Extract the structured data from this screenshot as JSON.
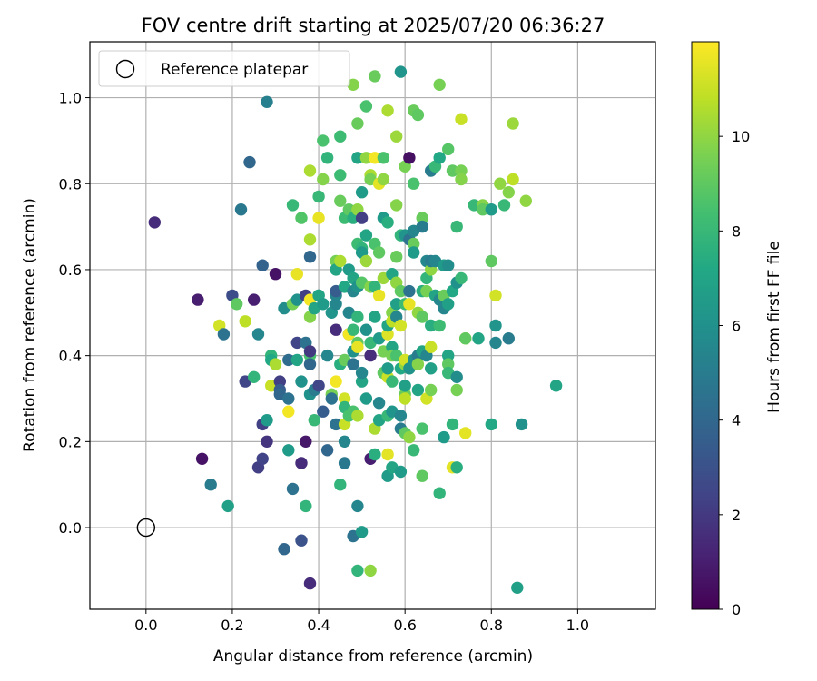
{
  "chart_data": {
    "type": "scatter",
    "title": "FOV centre drift starting at 2025/07/20 06:36:27",
    "xlabel": "Angular distance from reference (arcmin)",
    "ylabel": "Rotation from reference (arcmin)",
    "xlim": [
      -0.13,
      1.18
    ],
    "ylim": [
      -0.19,
      1.13
    ],
    "xticks": [
      0.0,
      0.2,
      0.4,
      0.6,
      0.8,
      1.0
    ],
    "xtick_labels": [
      "0.0",
      "0.2",
      "0.4",
      "0.6",
      "0.8",
      "1.0"
    ],
    "yticks": [
      0.0,
      0.2,
      0.4,
      0.6,
      0.8,
      1.0
    ],
    "ytick_labels": [
      "0.0",
      "0.2",
      "0.4",
      "0.6",
      "0.8",
      "1.0"
    ],
    "grid": true,
    "legend": {
      "placement": "upper-left",
      "entries": [
        "Reference platepar"
      ]
    },
    "reference_point": {
      "x": 0.0,
      "y": 0.0,
      "label": "Reference platepar"
    },
    "colorbar": {
      "label": "Hours from first FF file",
      "colormap": "viridis",
      "range": [
        0,
        12
      ],
      "ticks": [
        0,
        2,
        4,
        6,
        8,
        10
      ],
      "tick_labels": [
        "0",
        "2",
        "4",
        "6",
        "8",
        "10"
      ]
    },
    "points": [
      [
        0.02,
        0.71,
        1.5
      ],
      [
        0.12,
        0.53,
        1.0
      ],
      [
        0.13,
        0.16,
        0.6
      ],
      [
        0.15,
        0.1,
        5.0
      ],
      [
        0.17,
        0.47,
        11.2
      ],
      [
        0.18,
        0.45,
        4.5
      ],
      [
        0.19,
        0.05,
        6.8
      ],
      [
        0.2,
        0.54,
        2.8
      ],
      [
        0.21,
        0.52,
        9.0
      ],
      [
        0.22,
        0.74,
        4.8
      ],
      [
        0.23,
        0.48,
        10.8
      ],
      [
        0.23,
        0.34,
        2.5
      ],
      [
        0.24,
        0.85,
        4.0
      ],
      [
        0.25,
        0.35,
        7.8
      ],
      [
        0.25,
        0.53,
        1.0
      ],
      [
        0.26,
        0.45,
        5.5
      ],
      [
        0.26,
        0.14,
        2.2
      ],
      [
        0.27,
        0.24,
        2.3
      ],
      [
        0.27,
        0.16,
        2.4
      ],
      [
        0.27,
        0.61,
        3.8
      ],
      [
        0.28,
        0.99,
        5.2
      ],
      [
        0.28,
        0.25,
        6.5
      ],
      [
        0.28,
        0.2,
        1.8
      ],
      [
        0.29,
        0.4,
        7.8
      ],
      [
        0.29,
        0.39,
        7.2
      ],
      [
        0.29,
        0.33,
        11.0
      ],
      [
        0.3,
        0.38,
        10.5
      ],
      [
        0.3,
        0.59,
        0.6
      ],
      [
        0.31,
        0.34,
        2.2
      ],
      [
        0.31,
        0.32,
        3.5
      ],
      [
        0.31,
        0.31,
        4.0
      ],
      [
        0.32,
        0.51,
        5.8
      ],
      [
        0.32,
        -0.05,
        4.0
      ],
      [
        0.33,
        0.3,
        4.5
      ],
      [
        0.33,
        0.27,
        11.8
      ],
      [
        0.33,
        0.39,
        4.2
      ],
      [
        0.33,
        0.18,
        6.5
      ],
      [
        0.34,
        0.09,
        4.5
      ],
      [
        0.34,
        0.75,
        8.0
      ],
      [
        0.34,
        0.52,
        9.5
      ],
      [
        0.35,
        0.59,
        11.6
      ],
      [
        0.35,
        0.39,
        7.0
      ],
      [
        0.35,
        0.53,
        6.0
      ],
      [
        0.35,
        0.43,
        2.5
      ],
      [
        0.36,
        0.72,
        8.7
      ],
      [
        0.36,
        0.34,
        6.0
      ],
      [
        0.36,
        0.15,
        1.5
      ],
      [
        0.36,
        -0.03,
        3.0
      ],
      [
        0.37,
        0.05,
        7.8
      ],
      [
        0.37,
        0.43,
        4.5
      ],
      [
        0.37,
        0.2,
        0.8
      ],
      [
        0.37,
        0.54,
        2.2
      ],
      [
        0.38,
        0.53,
        11.8
      ],
      [
        0.38,
        0.49,
        9.8
      ],
      [
        0.38,
        0.4,
        8.5
      ],
      [
        0.38,
        0.38,
        4.0
      ],
      [
        0.38,
        0.41,
        2.0
      ],
      [
        0.38,
        0.31,
        6.0
      ],
      [
        0.38,
        0.63,
        4.0
      ],
      [
        0.38,
        -0.13,
        1.5
      ],
      [
        0.38,
        0.67,
        10.5
      ],
      [
        0.38,
        0.83,
        10.5
      ],
      [
        0.39,
        0.25,
        8.0
      ],
      [
        0.39,
        0.32,
        5.0
      ],
      [
        0.39,
        0.51,
        7.0
      ],
      [
        0.4,
        0.72,
        11.6
      ],
      [
        0.4,
        0.77,
        8.0
      ],
      [
        0.4,
        0.54,
        5.5
      ],
      [
        0.4,
        0.33,
        2.5
      ],
      [
        0.4,
        0.54,
        7.0
      ],
      [
        0.41,
        0.27,
        3.5
      ],
      [
        0.41,
        0.52,
        6.5
      ],
      [
        0.41,
        0.9,
        8.5
      ],
      [
        0.41,
        0.81,
        9.8
      ],
      [
        0.42,
        0.18,
        4.0
      ],
      [
        0.42,
        0.4,
        5.5
      ],
      [
        0.42,
        0.86,
        7.8
      ],
      [
        0.43,
        0.5,
        6.2
      ],
      [
        0.43,
        0.31,
        9.5
      ],
      [
        0.43,
        0.3,
        4.5
      ],
      [
        0.44,
        0.52,
        5.5
      ],
      [
        0.44,
        0.46,
        1.5
      ],
      [
        0.44,
        0.24,
        4.5
      ],
      [
        0.44,
        0.62,
        9.5
      ],
      [
        0.44,
        0.54,
        5.5
      ],
      [
        0.44,
        0.55,
        3.5
      ],
      [
        0.44,
        0.6,
        7.0
      ],
      [
        0.44,
        0.34,
        11.8
      ],
      [
        0.45,
        0.91,
        8.2
      ],
      [
        0.45,
        0.82,
        8.2
      ],
      [
        0.45,
        0.76,
        9.2
      ],
      [
        0.45,
        0.1,
        7.8
      ],
      [
        0.45,
        0.62,
        10.5
      ],
      [
        0.45,
        0.38,
        7.5
      ],
      [
        0.46,
        0.3,
        11.2
      ],
      [
        0.46,
        0.28,
        7.8
      ],
      [
        0.46,
        0.15,
        4.8
      ],
      [
        0.46,
        0.56,
        7.2
      ],
      [
        0.46,
        0.39,
        9.2
      ],
      [
        0.46,
        0.2,
        5.5
      ],
      [
        0.46,
        0.24,
        11.0
      ],
      [
        0.46,
        0.72,
        8.2
      ],
      [
        0.47,
        0.74,
        9.0
      ],
      [
        0.47,
        0.6,
        6.5
      ],
      [
        0.47,
        0.26,
        8.5
      ],
      [
        0.47,
        0.45,
        3.5
      ],
      [
        0.47,
        0.5,
        5.5
      ],
      [
        0.47,
        0.45,
        11.8
      ],
      [
        0.48,
        0.46,
        8.0
      ],
      [
        0.48,
        1.03,
        9.8
      ],
      [
        0.48,
        0.58,
        7.0
      ],
      [
        0.48,
        0.41,
        6.0
      ],
      [
        0.48,
        0.55,
        5.5
      ],
      [
        0.48,
        0.38,
        4.5
      ],
      [
        0.48,
        0.72,
        7.5
      ],
      [
        0.48,
        0.27,
        8.5
      ],
      [
        0.48,
        -0.02,
        4.5
      ],
      [
        0.49,
        0.94,
        9.2
      ],
      [
        0.49,
        0.86,
        7.0
      ],
      [
        0.49,
        0.74,
        10.0
      ],
      [
        0.49,
        0.56,
        6.0
      ],
      [
        0.49,
        0.26,
        10.5
      ],
      [
        0.49,
        0.43,
        9.0
      ],
      [
        0.49,
        0.42,
        11.6
      ],
      [
        0.49,
        0.05,
        5.5
      ],
      [
        0.49,
        -0.1,
        7.8
      ],
      [
        0.49,
        0.49,
        7.8
      ],
      [
        0.49,
        0.66,
        8.2
      ],
      [
        0.5,
        0.34,
        7.0
      ],
      [
        0.5,
        0.65,
        7.8
      ],
      [
        0.5,
        0.64,
        6.5
      ],
      [
        0.5,
        0.78,
        6.5
      ],
      [
        0.5,
        0.36,
        5.5
      ],
      [
        0.5,
        -0.01,
        6.5
      ],
      [
        0.5,
        0.72,
        2.2
      ],
      [
        0.5,
        0.57,
        8.8
      ],
      [
        0.51,
        0.46,
        6.0
      ],
      [
        0.51,
        0.3,
        6.5
      ],
      [
        0.51,
        0.98,
        8.5
      ],
      [
        0.51,
        0.86,
        10.0
      ],
      [
        0.51,
        0.68,
        7.0
      ],
      [
        0.51,
        0.62,
        10.2
      ],
      [
        0.52,
        0.82,
        10.5
      ],
      [
        0.52,
        0.4,
        1.5
      ],
      [
        0.52,
        0.16,
        1.0
      ],
      [
        0.52,
        0.43,
        8.0
      ],
      [
        0.52,
        0.56,
        9.8
      ],
      [
        0.52,
        0.81,
        9.5
      ],
      [
        0.52,
        -0.1,
        10.0
      ],
      [
        0.53,
        1.05,
        9.2
      ],
      [
        0.53,
        0.86,
        11.8
      ],
      [
        0.53,
        0.66,
        8.5
      ],
      [
        0.53,
        0.56,
        7.8
      ],
      [
        0.53,
        0.49,
        7.0
      ],
      [
        0.53,
        0.23,
        10.5
      ],
      [
        0.53,
        0.17,
        7.5
      ],
      [
        0.54,
        0.54,
        11.6
      ],
      [
        0.54,
        0.8,
        11.5
      ],
      [
        0.54,
        0.64,
        9.0
      ],
      [
        0.54,
        0.44,
        6.5
      ],
      [
        0.54,
        0.29,
        5.5
      ],
      [
        0.54,
        0.25,
        7.0
      ],
      [
        0.55,
        0.86,
        8.5
      ],
      [
        0.55,
        0.58,
        10.2
      ],
      [
        0.55,
        0.41,
        9.5
      ],
      [
        0.55,
        0.81,
        10.0
      ],
      [
        0.55,
        0.36,
        9.0
      ],
      [
        0.55,
        0.72,
        6.5
      ],
      [
        0.56,
        0.97,
        10.5
      ],
      [
        0.56,
        0.35,
        11.0
      ],
      [
        0.56,
        0.17,
        11.5
      ],
      [
        0.56,
        0.12,
        6.5
      ],
      [
        0.56,
        0.45,
        11.4
      ],
      [
        0.56,
        0.26,
        8.0
      ],
      [
        0.56,
        0.47,
        7.0
      ],
      [
        0.56,
        0.71,
        7.5
      ],
      [
        0.56,
        0.37,
        6.5
      ],
      [
        0.57,
        0.59,
        7.0
      ],
      [
        0.57,
        0.5,
        9.8
      ],
      [
        0.57,
        0.42,
        7.0
      ],
      [
        0.57,
        0.48,
        10.8
      ],
      [
        0.57,
        0.4,
        9.5
      ],
      [
        0.57,
        0.27,
        6.2
      ],
      [
        0.57,
        0.14,
        7.0
      ],
      [
        0.57,
        0.34,
        8.0
      ],
      [
        0.58,
        0.91,
        10.2
      ],
      [
        0.58,
        0.75,
        9.8
      ],
      [
        0.58,
        0.57,
        10.0
      ],
      [
        0.58,
        0.52,
        6.8
      ],
      [
        0.58,
        0.4,
        8.5
      ],
      [
        0.58,
        0.49,
        5.5
      ],
      [
        0.58,
        0.63,
        9.2
      ],
      [
        0.59,
        1.06,
        6.2
      ],
      [
        0.59,
        0.68,
        7.8
      ],
      [
        0.59,
        0.55,
        9.0
      ],
      [
        0.59,
        0.47,
        11.2
      ],
      [
        0.59,
        0.37,
        7.2
      ],
      [
        0.59,
        0.26,
        5.5
      ],
      [
        0.59,
        0.23,
        5.0
      ],
      [
        0.59,
        0.13,
        6.5
      ],
      [
        0.6,
        0.84,
        9.5
      ],
      [
        0.6,
        0.68,
        6.2
      ],
      [
        0.6,
        0.52,
        8.2
      ],
      [
        0.6,
        0.31,
        9.2
      ],
      [
        0.6,
        0.3,
        10.8
      ],
      [
        0.6,
        0.38,
        10.0
      ],
      [
        0.6,
        0.22,
        9.0
      ],
      [
        0.6,
        0.33,
        6.8
      ],
      [
        0.6,
        0.39,
        11.2
      ],
      [
        0.61,
        0.86,
        0.5
      ],
      [
        0.61,
        0.67,
        4.5
      ],
      [
        0.61,
        0.55,
        4.5
      ],
      [
        0.61,
        0.52,
        11.6
      ],
      [
        0.61,
        0.37,
        9.8
      ],
      [
        0.61,
        0.37,
        6.0
      ],
      [
        0.61,
        0.21,
        10.0
      ],
      [
        0.62,
        0.66,
        9.2
      ],
      [
        0.62,
        0.64,
        6.5
      ],
      [
        0.62,
        0.18,
        8.0
      ],
      [
        0.62,
        0.69,
        5.5
      ],
      [
        0.62,
        0.39,
        6.0
      ],
      [
        0.62,
        0.8,
        8.5
      ],
      [
        0.62,
        0.97,
        9.2
      ],
      [
        0.63,
        0.5,
        10.0
      ],
      [
        0.63,
        0.4,
        5.0
      ],
      [
        0.63,
        0.32,
        7.0
      ],
      [
        0.63,
        0.38,
        9.8
      ],
      [
        0.63,
        0.96,
        9.0
      ],
      [
        0.64,
        0.72,
        9.2
      ],
      [
        0.64,
        0.7,
        5.0
      ],
      [
        0.64,
        0.55,
        7.5
      ],
      [
        0.64,
        0.49,
        9.0
      ],
      [
        0.64,
        0.41,
        7.0
      ],
      [
        0.64,
        0.23,
        8.5
      ],
      [
        0.64,
        0.12,
        9.0
      ],
      [
        0.65,
        0.62,
        5.5
      ],
      [
        0.65,
        0.58,
        7.8
      ],
      [
        0.65,
        0.55,
        9.5
      ],
      [
        0.65,
        0.3,
        11.2
      ],
      [
        0.65,
        0.4,
        5.5
      ],
      [
        0.66,
        0.47,
        7.5
      ],
      [
        0.66,
        0.32,
        9.5
      ],
      [
        0.66,
        0.6,
        10.0
      ],
      [
        0.66,
        0.42,
        11.0
      ],
      [
        0.66,
        0.37,
        6.8
      ],
      [
        0.66,
        0.83,
        5.0
      ],
      [
        0.66,
        0.62,
        5.0
      ],
      [
        0.67,
        0.54,
        7.0
      ],
      [
        0.67,
        0.84,
        8.0
      ],
      [
        0.67,
        0.62,
        5.5
      ],
      [
        0.68,
        1.03,
        9.5
      ],
      [
        0.68,
        0.86,
        7.2
      ],
      [
        0.68,
        0.47,
        8.2
      ],
      [
        0.68,
        0.53,
        5.5
      ],
      [
        0.68,
        0.08,
        7.8
      ],
      [
        0.69,
        0.61,
        6.5
      ],
      [
        0.69,
        0.54,
        9.2
      ],
      [
        0.69,
        0.51,
        5.5
      ],
      [
        0.69,
        0.21,
        6.5
      ],
      [
        0.7,
        0.4,
        7.0
      ],
      [
        0.7,
        0.38,
        9.0
      ],
      [
        0.7,
        0.36,
        8.0
      ],
      [
        0.7,
        0.61,
        5.8
      ],
      [
        0.7,
        0.52,
        6.8
      ],
      [
        0.7,
        0.88,
        8.8
      ],
      [
        0.71,
        0.83,
        9.0
      ],
      [
        0.71,
        0.24,
        7.8
      ],
      [
        0.71,
        0.14,
        11.5
      ],
      [
        0.71,
        0.55,
        7.2
      ],
      [
        0.72,
        0.57,
        6.0
      ],
      [
        0.72,
        0.35,
        5.8
      ],
      [
        0.72,
        0.7,
        8.0
      ],
      [
        0.72,
        0.14,
        7.5
      ],
      [
        0.72,
        0.32,
        9.5
      ],
      [
        0.73,
        0.83,
        9.5
      ],
      [
        0.73,
        0.58,
        8.0
      ],
      [
        0.73,
        0.81,
        9.8
      ],
      [
        0.73,
        0.95,
        11.0
      ],
      [
        0.74,
        0.44,
        10.8
      ],
      [
        0.74,
        0.22,
        11.5
      ],
      [
        0.74,
        0.44,
        9.0
      ],
      [
        0.76,
        0.75,
        8.0
      ],
      [
        0.77,
        0.44,
        7.0
      ],
      [
        0.78,
        0.75,
        9.8
      ],
      [
        0.78,
        0.74,
        9.0
      ],
      [
        0.8,
        0.62,
        9.0
      ],
      [
        0.8,
        0.74,
        6.5
      ],
      [
        0.8,
        0.24,
        7.2
      ],
      [
        0.81,
        0.54,
        11.2
      ],
      [
        0.81,
        0.47,
        6.2
      ],
      [
        0.81,
        0.43,
        5.5
      ],
      [
        0.82,
        0.8,
        10.0
      ],
      [
        0.83,
        0.75,
        8.0
      ],
      [
        0.84,
        0.44,
        5.0
      ],
      [
        0.84,
        0.78,
        9.8
      ],
      [
        0.85,
        0.94,
        10.2
      ],
      [
        0.85,
        0.81,
        10.8
      ],
      [
        0.86,
        -0.14,
        6.8
      ],
      [
        0.87,
        0.24,
        6.0
      ],
      [
        0.88,
        0.76,
        10.0
      ],
      [
        0.95,
        0.33,
        7.0
      ]
    ]
  }
}
